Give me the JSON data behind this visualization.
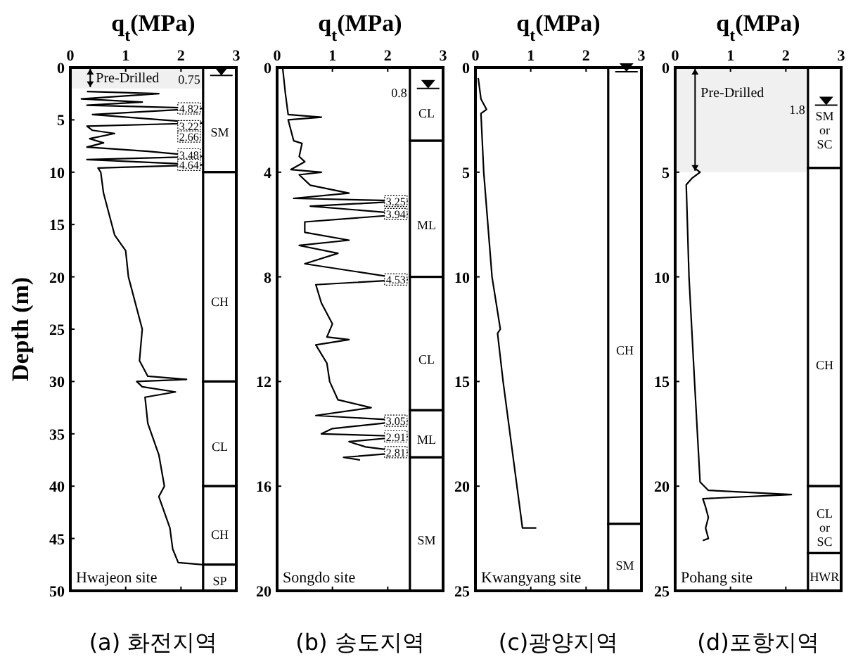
{
  "chart_data": [
    {
      "type": "line",
      "title": "(a) 화전지역",
      "xlabel": "q$_{t}$(MPa)",
      "ylabel": "Depth (m)",
      "xlim": [
        0,
        3
      ],
      "xticks": [
        0,
        1,
        2,
        3
      ],
      "ylim": [
        50,
        0
      ],
      "yticks": [
        0,
        5,
        10,
        15,
        20,
        25,
        30,
        35,
        40,
        45,
        50
      ],
      "grid": false,
      "series": [
        {
          "color": "#000000",
          "x": [
            0.3,
            1.6,
            0.2,
            1.3,
            0.3,
            2.4,
            0.4,
            2.4,
            0.3,
            0.4,
            0.8,
            0.35,
            0.6,
            0.3,
            1.4,
            2.4,
            0.3,
            2.4,
            0.5,
            0.55,
            0.6,
            0.7,
            0.8,
            1.0,
            1.05,
            1.2,
            1.3,
            1.25,
            1.4,
            2.1,
            1.2,
            1.3,
            1.9,
            1.35,
            1.4,
            1.6,
            1.7,
            1.6,
            1.8,
            1.85,
            1.95,
            2.4
          ],
          "values": [
            2.3,
            2.5,
            3.0,
            3.3,
            3.6,
            3.9,
            4.5,
            5.3,
            5.6,
            6.0,
            6.3,
            6.8,
            7.2,
            7.6,
            8.0,
            8.5,
            8.8,
            9.3,
            9.6,
            10,
            12,
            14,
            16,
            17.5,
            20,
            23,
            25,
            28,
            29.5,
            29.8,
            30,
            30.5,
            31,
            31.5,
            34,
            37,
            40,
            41,
            44,
            46,
            47.3,
            47.5
          ]
        }
      ],
      "bands": [
        {
          "axis": "y",
          "from": 0,
          "to": 2,
          "label": "Pre-Drilled"
        },
        {
          "axis": "y",
          "from": 0,
          "to": 10,
          "label": "SM",
          "color": "#ffffff"
        },
        {
          "axis": "y",
          "from": 10,
          "to": 30,
          "label": "CH",
          "color": "#ffffff"
        },
        {
          "axis": "y",
          "from": 30,
          "to": 40,
          "label": "CL",
          "color": "#ffffff"
        },
        {
          "axis": "y",
          "from": 40,
          "to": 47.5,
          "label": "CH",
          "color": "#ffffff"
        },
        {
          "axis": "y",
          "from": 47.5,
          "to": 50,
          "label": "SP",
          "color": "#ffffff"
        }
      ],
      "ref_lines": [
        {
          "axis": "y",
          "value": 0.75,
          "label": "0.75"
        }
      ],
      "annotations": [
        "Hwajeon site",
        {
          "text": "4.82",
          "y": 3.9
        },
        {
          "text": "3.22",
          "y": 5.6
        },
        {
          "text": "2.66",
          "y": 6.6
        },
        {
          "text": "3.48",
          "y": 8.3
        },
        {
          "text": "4.64",
          "y": 9.3
        }
      ]
    },
    {
      "type": "line",
      "title": "(b) 송도지역",
      "xlabel": "q$_{t}$(MPa)",
      "xlim": [
        0,
        3
      ],
      "xticks": [
        0,
        1,
        2,
        3
      ],
      "ylim": [
        20,
        0
      ],
      "yticks": [
        0,
        4,
        8,
        12,
        16,
        20
      ],
      "grid": false,
      "series": [
        {
          "color": "#000000",
          "x": [
            0.1,
            0.15,
            0.2,
            0.8,
            0.2,
            0.3,
            0.45,
            0.4,
            0.5,
            0.25,
            0.8,
            0.4,
            0.6,
            1.3,
            0.3,
            2.35,
            0.6,
            2.35,
            0.5,
            0.5,
            1.3,
            0.4,
            1.1,
            0.5,
            2.35,
            0.7,
            0.8,
            1.0,
            0.9,
            1.3,
            0.7,
            0.9,
            0.95,
            1.1,
            1.7,
            0.7,
            2.35,
            1.0,
            0.8,
            2.35,
            1.3,
            1.6,
            2.35,
            1.2,
            1.5
          ],
          "values": [
            0,
            1,
            1.8,
            1.9,
            2.0,
            2.8,
            2.9,
            3.4,
            3.6,
            3.9,
            4.0,
            4.1,
            4.5,
            4.8,
            5.0,
            5.1,
            5.3,
            5.6,
            5.9,
            6.3,
            6.6,
            6.8,
            7.1,
            7.5,
            8.1,
            8.3,
            9,
            9.8,
            10.3,
            10.4,
            10.6,
            11.3,
            12,
            12.7,
            13.0,
            13.3,
            13.5,
            13.8,
            14.0,
            14.1,
            14.3,
            14.5,
            14.7,
            14.9,
            15.0
          ]
        }
      ],
      "bands": [
        {
          "axis": "y",
          "from": 0,
          "to": 2.8,
          "label": "CL",
          "color": "#ffffff"
        },
        {
          "axis": "y",
          "from": 2.8,
          "to": 8,
          "label": "ML",
          "color": "#ffffff"
        },
        {
          "axis": "y",
          "from": 8,
          "to": 13.1,
          "label": "CL",
          "color": "#ffffff"
        },
        {
          "axis": "y",
          "from": 13.1,
          "to": 14.9,
          "label": "ML",
          "color": "#ffffff"
        },
        {
          "axis": "y",
          "from": 14.9,
          "to": 20,
          "label": "SM",
          "color": "#ffffff"
        }
      ],
      "ref_lines": [
        {
          "axis": "y",
          "value": 0.8,
          "label": "0.8"
        }
      ],
      "annotations": [
        "Songdo site",
        {
          "text": "3.25",
          "y": 5.1
        },
        {
          "text": "3.94",
          "y": 5.6
        },
        {
          "text": "4.53",
          "y": 8.1
        },
        {
          "text": "3.05",
          "y": 13.5
        },
        {
          "text": "2.91",
          "y": 14.1
        },
        {
          "text": "2.81",
          "y": 14.7
        }
      ]
    },
    {
      "type": "line",
      "title": "(c)광양지역",
      "xlabel": "q$_{t}$(MPa)",
      "xlim": [
        0,
        3
      ],
      "xticks": [
        0,
        1,
        2,
        3
      ],
      "ylim": [
        25,
        0
      ],
      "yticks": [
        0,
        5,
        10,
        15,
        20,
        25
      ],
      "grid": false,
      "series": [
        {
          "color": "#000000",
          "x": [
            0.05,
            0.1,
            0.2,
            0.1,
            0.15,
            0.3,
            0.45,
            0.4,
            0.5,
            0.65,
            0.75,
            0.8,
            0.85,
            1.1
          ],
          "values": [
            0.5,
            1.5,
            2.0,
            2.2,
            5,
            10,
            12.5,
            12.7,
            15,
            18,
            20,
            21,
            22,
            22
          ]
        }
      ],
      "bands": [
        {
          "axis": "y",
          "from": 0,
          "to": 21.8,
          "label": "CH",
          "color": "#ffffff"
        },
        {
          "axis": "y",
          "from": 21.8,
          "to": 25,
          "label": "SM",
          "color": "#ffffff"
        }
      ],
      "ref_lines": [
        {
          "axis": "y",
          "value": 0.2
        }
      ],
      "annotations": [
        "Kwangyang site"
      ]
    },
    {
      "type": "line",
      "title": "(d)포항지역",
      "xlabel": "q$_{t}$(MPa)",
      "xlim": [
        0,
        3
      ],
      "xticks": [
        0,
        1,
        2,
        3
      ],
      "ylim": [
        25,
        0
      ],
      "yticks": [
        0,
        5,
        10,
        15,
        20,
        25
      ],
      "grid": false,
      "series": [
        {
          "color": "#000000",
          "x": [
            0.35,
            0.45,
            0.3,
            0.2,
            0.25,
            0.35,
            0.45,
            0.6,
            2.1,
            0.5,
            0.55,
            0.6,
            0.55,
            0.6,
            0.5
          ],
          "values": [
            4.8,
            5.0,
            5.3,
            5.6,
            10,
            15,
            19.8,
            20.2,
            20.4,
            20.6,
            21,
            21.5,
            22,
            22.5,
            22.6
          ]
        }
      ],
      "bands": [
        {
          "axis": "y",
          "from": 0,
          "to": 5,
          "label": "Pre-Drilled"
        },
        {
          "axis": "y",
          "from": 0,
          "to": 4.8,
          "label": "SM\nor\nSC",
          "color": "#ffffff"
        },
        {
          "axis": "y",
          "from": 4.8,
          "to": 20,
          "label": "CH",
          "color": "#ffffff"
        },
        {
          "axis": "y",
          "from": 20,
          "to": 23.2,
          "label": "CL\nor\nSC",
          "color": "#ffffff"
        },
        {
          "axis": "y",
          "from": 23.2,
          "to": 25,
          "label": "HWR",
          "color": "#ffffff"
        }
      ],
      "ref_lines": [
        {
          "axis": "y",
          "value": 1.8,
          "label": "1.8"
        }
      ],
      "annotations": [
        "Pohang site"
      ]
    }
  ]
}
